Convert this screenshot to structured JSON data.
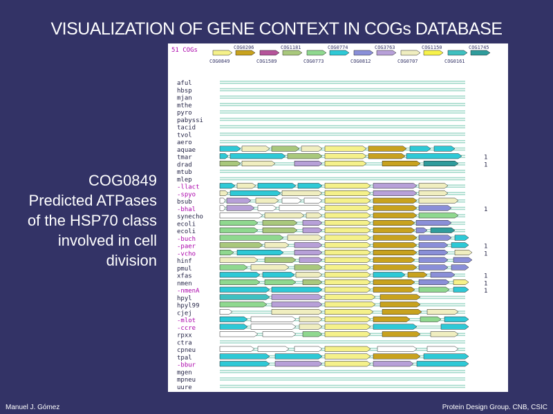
{
  "title": "VISUALIZATION OF GENE CONTEXT IN COGs DATABASE",
  "caption": [
    "COG0849",
    "Predicted ATPases",
    "of the HSP70 class",
    "involved in cell",
    "division"
  ],
  "footer": {
    "left": "Manuel J. Gómez",
    "right": "Protein Design Group. CNB, CSIC"
  },
  "figure": {
    "cog_count_label": "51 COGs",
    "legend_top": [
      {
        "id": "COG0206",
        "color": "#c8a21e"
      },
      {
        "id": "COG1181",
        "color": "#a9c87c"
      },
      {
        "id": "COG0774",
        "color": "#2ec9d6"
      },
      {
        "id": "COG3763",
        "color": "#b7a0d8"
      },
      {
        "id": "COG1150",
        "color": "#f7f24a"
      },
      {
        "id": "COG1745",
        "color": "#2f9c9c"
      }
    ],
    "legend_bottom": [
      {
        "id": "COG0849",
        "color": "#f5f18a"
      },
      {
        "id": "COG1589",
        "color": "#b5549a"
      },
      {
        "id": "COG0773",
        "color": "#8fd88f"
      },
      {
        "id": "COG0812",
        "color": "#8a8fd8"
      },
      {
        "id": "COG0707",
        "color": "#f0eec0"
      },
      {
        "id": "COG0161",
        "color": "#3fc0c0"
      }
    ],
    "organisms": [
      {
        "code": "aful",
        "hl": false,
        "count": ""
      },
      {
        "code": "hbsp",
        "hl": false,
        "count": ""
      },
      {
        "code": "mjan",
        "hl": false,
        "count": ""
      },
      {
        "code": "mthe",
        "hl": false,
        "count": ""
      },
      {
        "code": "pyro",
        "hl": false,
        "count": ""
      },
      {
        "code": "pabyssi",
        "hl": false,
        "count": ""
      },
      {
        "code": "tacid",
        "hl": false,
        "count": ""
      },
      {
        "code": "tvol",
        "hl": false,
        "count": ""
      },
      {
        "code": "aero",
        "hl": false,
        "count": ""
      },
      {
        "code": "aquae",
        "hl": false,
        "count": ""
      },
      {
        "code": "tmar",
        "hl": false,
        "count": "1"
      },
      {
        "code": "drad",
        "hl": false,
        "count": "1"
      },
      {
        "code": "mtub",
        "hl": false,
        "count": ""
      },
      {
        "code": "mlep",
        "hl": false,
        "count": ""
      },
      {
        "code": "-llact",
        "hl": true,
        "count": ""
      },
      {
        "code": "-spyo",
        "hl": true,
        "count": ""
      },
      {
        "code": "bsub",
        "hl": false,
        "count": ""
      },
      {
        "code": "-bhal",
        "hl": true,
        "count": "1"
      },
      {
        "code": "synecho",
        "hl": false,
        "count": ""
      },
      {
        "code": "ecoli",
        "hl": false,
        "count": ""
      },
      {
        "code": "ecoli",
        "hl": false,
        "count": ""
      },
      {
        "code": "-buch",
        "hl": true,
        "count": ""
      },
      {
        "code": "-paer",
        "hl": true,
        "count": "1"
      },
      {
        "code": "-vcho",
        "hl": true,
        "count": "1"
      },
      {
        "code": "hinf",
        "hl": false,
        "count": ""
      },
      {
        "code": "pmul",
        "hl": false,
        "count": ""
      },
      {
        "code": "xfas",
        "hl": false,
        "count": "1"
      },
      {
        "code": "nmen",
        "hl": false,
        "count": "1"
      },
      {
        "code": "-nmenA",
        "hl": true,
        "count": "1"
      },
      {
        "code": "hpyl",
        "hl": false,
        "count": ""
      },
      {
        "code": "hpyl99",
        "hl": false,
        "count": ""
      },
      {
        "code": "cjej",
        "hl": false,
        "count": ""
      },
      {
        "code": "-mlot",
        "hl": true,
        "count": ""
      },
      {
        "code": "-ccre",
        "hl": true,
        "count": ""
      },
      {
        "code": "rpxx",
        "hl": false,
        "count": ""
      },
      {
        "code": "ctra",
        "hl": false,
        "count": ""
      },
      {
        "code": "cpneu",
        "hl": false,
        "count": ""
      },
      {
        "code": "tpal",
        "hl": false,
        "count": ""
      },
      {
        "code": "-bbur",
        "hl": true,
        "count": ""
      },
      {
        "code": "mgen",
        "hl": false,
        "count": ""
      },
      {
        "code": "mpneu",
        "hl": false,
        "count": ""
      },
      {
        "code": "uure",
        "hl": false,
        "count": ""
      }
    ],
    "tracks": [
      [],
      [],
      [],
      [],
      [],
      [],
      [],
      [],
      [],
      [
        [
          "#2ec9d6",
          0,
          30
        ],
        [
          "#f0eec0",
          32,
          72
        ],
        [
          "#a9c87c",
          75,
          115
        ],
        [
          "#f0eec0",
          118,
          148
        ],
        [
          "#f5f18a",
          152,
          212
        ],
        [
          "#c8a21e",
          215,
          270
        ],
        [
          "#2ec9d6",
          275,
          305
        ],
        [
          "#2ec9d6",
          310,
          340
        ]
      ],
      [
        [
          "#2ec9d6",
          0,
          12
        ],
        [
          "#2ec9d6",
          15,
          95
        ],
        [
          "#a9c87c",
          98,
          148
        ],
        [
          "#f5f18a",
          152,
          212
        ],
        [
          "#c8a21e",
          215,
          268
        ],
        [
          "#2ec9d6",
          270,
          350
        ]
      ],
      [
        [
          "#a9c87c",
          0,
          30
        ],
        [
          "#f0eec0",
          32,
          80
        ],
        [
          "#b7a0d8",
          108,
          148
        ],
        [
          "#f5f18a",
          152,
          212
        ],
        [
          "#c8a21e",
          235,
          290
        ],
        [
          "#2f9c9c",
          295,
          345
        ]
      ],
      [],
      [],
      [
        [
          "#2ec9d6",
          0,
          22
        ],
        [
          "#f0eec0",
          25,
          52
        ],
        [
          "#2ec9d6",
          55,
          110
        ],
        [
          "#2ec9d6",
          113,
          148
        ],
        [
          "#f5f18a",
          152,
          218
        ],
        [
          "#b7a0d8",
          222,
          285
        ],
        [
          "#f0eec0",
          288,
          330
        ]
      ],
      [
        [
          "#f0eec0",
          0,
          12
        ],
        [
          "#2ec9d6",
          15,
          88
        ],
        [
          "#f0eec0",
          90,
          148
        ],
        [
          "#f5f18a",
          152,
          218
        ],
        [
          "#b7a0d8",
          222,
          285
        ],
        [
          "#f0eec0",
          288,
          330
        ]
      ],
      [
        [
          "#ffffff",
          0,
          8
        ],
        [
          "#b7a0d8",
          10,
          45
        ],
        [
          "#f0eec0",
          52,
          85
        ],
        [
          "#ffffff",
          90,
          118
        ],
        [
          "#ffffff",
          122,
          148
        ],
        [
          "#f5f18a",
          152,
          218
        ],
        [
          "#c8a21e",
          222,
          285
        ],
        [
          "#f0eec0",
          288,
          345
        ]
      ],
      [
        [
          "#ffffff",
          0,
          8
        ],
        [
          "#b7a0d8",
          10,
          50
        ],
        [
          "#ffffff",
          55,
          82
        ],
        [
          "#ffffff",
          86,
          148
        ],
        [
          "#f5f18a",
          152,
          218
        ],
        [
          "#c8a21e",
          222,
          285
        ],
        [
          "#8a8fd8",
          288,
          335
        ]
      ],
      [
        [
          "#ffffff",
          0,
          62
        ],
        [
          "#f0eec0",
          65,
          122
        ],
        [
          "#f0eec0",
          125,
          148
        ],
        [
          "#f5f18a",
          152,
          218
        ],
        [
          "#c8a21e",
          222,
          285
        ],
        [
          "#8fd88f",
          288,
          345
        ]
      ],
      [
        [
          "#8fd88f",
          0,
          55
        ],
        [
          "#a9c87c",
          62,
          112
        ],
        [
          "#b7a0d8",
          120,
          148
        ],
        [
          "#f5f18a",
          152,
          218
        ],
        [
          "#c8a21e",
          222,
          282
        ],
        [
          "#8a8fd8",
          284,
          335
        ]
      ],
      [
        [
          "#8fd88f",
          0,
          55
        ],
        [
          "#a9c87c",
          62,
          112
        ],
        [
          "#b7a0d8",
          120,
          148
        ],
        [
          "#f5f18a",
          152,
          218
        ],
        [
          "#c8a21e",
          222,
          282
        ],
        [
          "#8a8fd8",
          284,
          300
        ],
        [
          "#2f9c9c",
          305,
          340
        ]
      ],
      [
        [
          "#8fd88f",
          0,
          92
        ],
        [
          "#f0eec0",
          98,
          148
        ],
        [
          "#f5f18a",
          152,
          218
        ],
        [
          "#c8a21e",
          222,
          285
        ],
        [
          "#8a8fd8",
          288,
          335
        ],
        [
          "#2ec9d6",
          340,
          360
        ]
      ],
      [
        [
          "#a9c87c",
          0,
          62
        ],
        [
          "#f0eec0",
          65,
          100
        ],
        [
          "#b7a0d8",
          108,
          148
        ],
        [
          "#f5f18a",
          152,
          218
        ],
        [
          "#c8a21e",
          222,
          285
        ],
        [
          "#8a8fd8",
          288,
          330
        ],
        [
          "#2ec9d6",
          335,
          360
        ]
      ],
      [
        [
          "#8fd88f",
          0,
          20
        ],
        [
          "#2ec9d6",
          25,
          92
        ],
        [
          "#b7a0d8",
          108,
          148
        ],
        [
          "#f5f18a",
          152,
          218
        ],
        [
          "#c8a21e",
          222,
          285
        ],
        [
          "#8a8fd8",
          288,
          330
        ],
        [
          "#f0eec0",
          340,
          365
        ]
      ],
      [
        [
          "#f0eec0",
          0,
          55
        ],
        [
          "#a9c87c",
          65,
          110
        ],
        [
          "#b7a0d8",
          115,
          148
        ],
        [
          "#f5f18a",
          152,
          218
        ],
        [
          "#c8a21e",
          222,
          282
        ],
        [
          "#8a8fd8",
          288,
          330
        ],
        [
          "#8a8fd8",
          338,
          365
        ]
      ],
      [
        [
          "#8fd88f",
          0,
          40
        ],
        [
          "#f0eec0",
          45,
          100
        ],
        [
          "#a9c87c",
          108,
          148
        ],
        [
          "#f5f18a",
          152,
          218
        ],
        [
          "#c8a21e",
          222,
          285
        ],
        [
          "#8a8fd8",
          288,
          330
        ],
        [
          "#8a8fd8",
          335,
          360
        ]
      ],
      [
        [
          "#2ec9d6",
          0,
          58
        ],
        [
          "#2ec9d6",
          62,
          108
        ],
        [
          "#f0eec0",
          110,
          148
        ],
        [
          "#f5f18a",
          152,
          218
        ],
        [
          "#2ec9d6",
          222,
          268
        ],
        [
          "#c8a21e",
          272,
          300
        ],
        [
          "#8a8fd8",
          305,
          340
        ]
      ],
      [
        [
          "#8fd88f",
          0,
          58
        ],
        [
          "#8fd88f",
          65,
          110
        ],
        [
          "#a9c87c",
          120,
          148
        ],
        [
          "#f5f18a",
          152,
          218
        ],
        [
          "#c8a21e",
          222,
          282
        ],
        [
          "#8a8fd8",
          288,
          332
        ],
        [
          "#f5f18a",
          338,
          360
        ]
      ],
      [
        [
          "#2ec9d6",
          0,
          72
        ],
        [
          "#2ec9d6",
          75,
          148
        ],
        [
          "#f5f18a",
          152,
          218
        ],
        [
          "#c8a21e",
          222,
          282
        ],
        [
          "#8fd88f",
          288,
          332
        ],
        [
          "#2ec9d6",
          338,
          360
        ]
      ],
      [
        [
          "#3fc0c0",
          0,
          72
        ],
        [
          "#b7a0d8",
          75,
          148
        ],
        [
          "#f5f18a",
          152,
          225
        ],
        [
          "#c8a21e",
          232,
          290
        ]
      ],
      [
        [
          "#8fd88f",
          0,
          68
        ],
        [
          "#b7a0d8",
          75,
          148
        ],
        [
          "#f5f18a",
          152,
          225
        ],
        [
          "#c8a21e",
          232,
          290
        ]
      ],
      [
        [
          "#ffffff",
          0,
          18
        ],
        [
          "#f0eec0",
          75,
          148
        ],
        [
          "#f5f18a",
          152,
          222
        ],
        [
          "#c8a21e",
          235,
          292
        ],
        [
          "#f0eec0",
          300,
          345
        ]
      ],
      [
        [
          "#2ec9d6",
          0,
          40
        ],
        [
          "#ffffff",
          45,
          110
        ],
        [
          "#f0eec0",
          115,
          148
        ],
        [
          "#f5f18a",
          152,
          218
        ],
        [
          "#c8a21e",
          222,
          275
        ],
        [
          "#8fd88f",
          290,
          320
        ],
        [
          "#2ec9d6",
          325,
          360
        ]
      ],
      [
        [
          "#2ec9d6",
          0,
          40
        ],
        [
          "#ffffff",
          45,
          110
        ],
        [
          "#f0eec0",
          115,
          148
        ],
        [
          "#f5f18a",
          152,
          218
        ],
        [
          "#2ec9d6",
          222,
          285
        ],
        [
          "#2ec9d6",
          320,
          360
        ]
      ],
      [
        [
          "#ffffff",
          0,
          55
        ],
        [
          "#ffffff",
          62,
          110
        ],
        [
          "#8fd88f",
          120,
          148
        ],
        [
          "#f5f18a",
          152,
          218
        ],
        [
          "#c8a21e",
          235,
          290
        ],
        [
          "#f0eec0",
          305,
          345
        ]
      ],
      [],
      [
        [
          "#ffffff",
          0,
          50
        ],
        [
          "#ffffff",
          55,
          100
        ],
        [
          "#ffffff",
          108,
          148
        ],
        [
          "#f5f18a",
          152,
          218
        ],
        [
          "#ffffff",
          228,
          285
        ],
        [
          "#ffffff",
          300,
          345
        ]
      ],
      [
        [
          "#2ec9d6",
          0,
          72
        ],
        [
          "#2ec9d6",
          80,
          148
        ],
        [
          "#f5f18a",
          152,
          218
        ],
        [
          "#c8a21e",
          222,
          290
        ],
        [
          "#2ec9d6",
          295,
          360
        ]
      ],
      [
        [
          "#2ec9d6",
          0,
          72
        ],
        [
          "#b7a0d8",
          80,
          148
        ],
        [
          "#f5f18a",
          152,
          218
        ],
        [
          "#b7a0d8",
          222,
          280
        ],
        [
          "#2ec9d6",
          285,
          360
        ]
      ],
      [],
      [],
      []
    ]
  }
}
